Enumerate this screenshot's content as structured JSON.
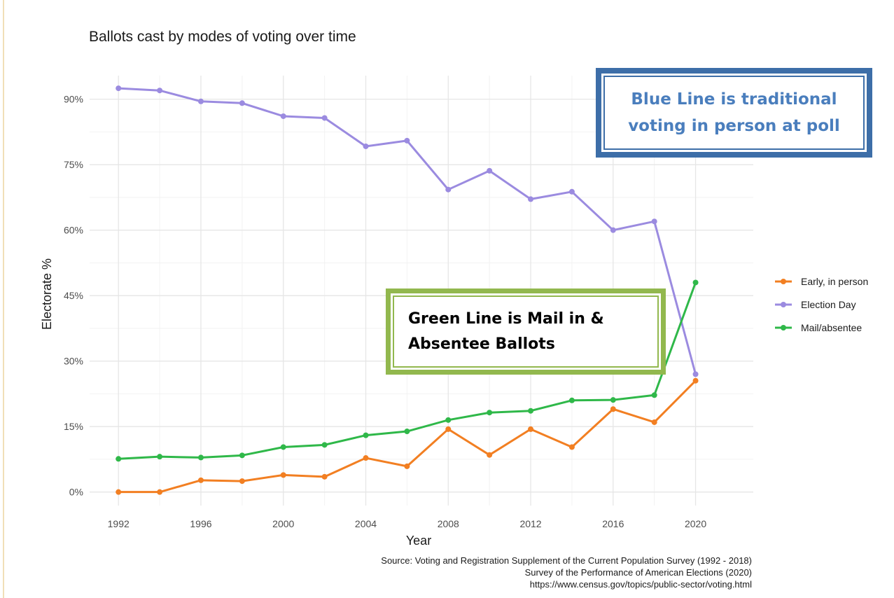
{
  "chart_data": {
    "type": "line",
    "title": "Ballots cast by modes of voting over time",
    "xlabel": "Year",
    "ylabel": "Electorate %",
    "x": [
      1992,
      1994,
      1996,
      1998,
      2000,
      2002,
      2004,
      2006,
      2008,
      2010,
      2012,
      2014,
      2016,
      2018,
      2020
    ],
    "x_ticks": [
      1992,
      1996,
      2000,
      2004,
      2008,
      2012,
      2016,
      2020
    ],
    "y_ticks": [
      0,
      15,
      30,
      45,
      60,
      75,
      90
    ],
    "y_tick_labels": [
      "0%",
      "15%",
      "30%",
      "45%",
      "60%",
      "75%",
      "90%"
    ],
    "xlim": [
      1990.6,
      2022.8
    ],
    "ylim": [
      -3.1,
      95.4
    ],
    "grid": true,
    "legend_position": "right",
    "series": [
      {
        "name": "Early, in person",
        "color": "#f27f22",
        "values": [
          0.0,
          0.0,
          2.7,
          2.5,
          3.9,
          3.5,
          7.8,
          5.9,
          14.4,
          8.5,
          14.4,
          10.3,
          19.0,
          16.0,
          25.5
        ]
      },
      {
        "name": "Election Day",
        "color": "#9b8be0",
        "values": [
          92.5,
          92.0,
          89.5,
          89.1,
          86.1,
          85.7,
          79.2,
          80.5,
          69.3,
          73.6,
          67.1,
          68.8,
          60.0,
          62.0,
          27.0
        ]
      },
      {
        "name": "Mail/absentee",
        "color": "#2fb849",
        "values": [
          7.6,
          8.1,
          7.9,
          8.4,
          10.3,
          10.8,
          13.0,
          13.9,
          16.5,
          18.2,
          18.6,
          21.0,
          21.1,
          22.2,
          48.0
        ]
      }
    ],
    "source_lines": [
      "Source: Voting and Registration Supplement of the Current Population Survey (1992 - 2018)",
      "Survey of the Performance of American Elections (2020)",
      "https://www.census.gov/topics/public-sector/voting.html"
    ]
  },
  "annotations": {
    "blue_box": "Blue Line is traditional\nvoting in person at poll",
    "green_box": "Green Line is Mail in &\nAbsentee Ballots",
    "blue_box_color": "#3d6ea8",
    "green_box_color": "#92b84e"
  }
}
